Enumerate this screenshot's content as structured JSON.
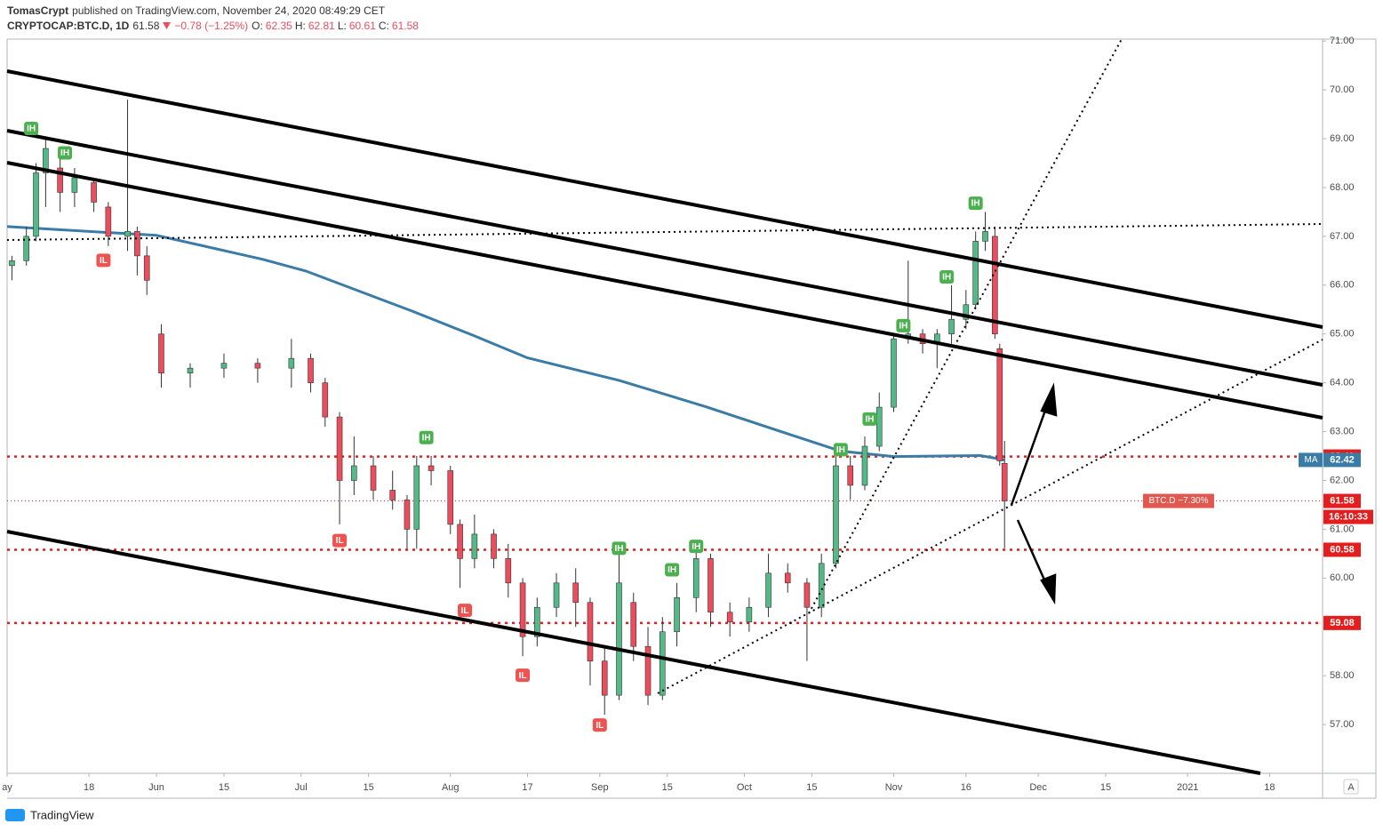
{
  "header": {
    "author": "TomasCrypt",
    "published": "published on TradingView.com, November 24, 2020 08:49:29 CET",
    "symbol": "CRYPTOCAP:BTC.D, 1D",
    "last": 61.58,
    "change": "−0.78 (−1.25%)",
    "ohlc_labels": [
      "O:",
      "H:",
      "L:",
      "C:"
    ]
  },
  "chart_data": {
    "type": "candlestick",
    "x": [
      "2020-05-02",
      "2020-05-05",
      "2020-05-07",
      "2020-05-09",
      "2020-05-12",
      "2020-05-15",
      "2020-05-19",
      "2020-05-22",
      "2020-05-26",
      "2020-05-28",
      "2020-05-30",
      "2020-06-02",
      "2020-06-08",
      "2020-06-15",
      "2020-06-22",
      "2020-06-29",
      "2020-07-03",
      "2020-07-06",
      "2020-07-09",
      "2020-07-12",
      "2020-07-16",
      "2020-07-20",
      "2020-07-23",
      "2020-07-25",
      "2020-07-28",
      "2020-08-01",
      "2020-08-03",
      "2020-08-06",
      "2020-08-10",
      "2020-08-13",
      "2020-08-16",
      "2020-08-19",
      "2020-08-23",
      "2020-08-27",
      "2020-08-30",
      "2020-09-02",
      "2020-09-05",
      "2020-09-08",
      "2020-09-11",
      "2020-09-14",
      "2020-09-17",
      "2020-09-21",
      "2020-09-24",
      "2020-09-28",
      "2020-10-02",
      "2020-10-06",
      "2020-10-10",
      "2020-10-14",
      "2020-10-17",
      "2020-10-20",
      "2020-10-23",
      "2020-10-26",
      "2020-10-29",
      "2020-11-01",
      "2020-11-04",
      "2020-11-07",
      "2020-11-10",
      "2020-11-13",
      "2020-11-16",
      "2020-11-18",
      "2020-11-20",
      "2020-11-22",
      "2020-11-23",
      "2020-11-24"
    ],
    "open": [
      66.4,
      66.5,
      67.0,
      68.3,
      68.4,
      67.9,
      68.1,
      67.6,
      67.0,
      67.1,
      66.6,
      65.0,
      64.2,
      64.3,
      64.4,
      64.3,
      64.5,
      64.0,
      63.3,
      62.0,
      62.3,
      61.8,
      61.6,
      61.0,
      62.3,
      62.2,
      61.1,
      60.4,
      60.9,
      60.4,
      59.9,
      58.8,
      59.4,
      59.9,
      59.5,
      58.3,
      57.6,
      59.5,
      58.6,
      57.6,
      58.9,
      59.6,
      60.4,
      59.3,
      59.1,
      59.4,
      60.1,
      59.9,
      59.4,
      60.3,
      62.3,
      61.9,
      62.7,
      63.5,
      64.9,
      65.0,
      64.8,
      65.0,
      65.3,
      65.6,
      66.9,
      67.0,
      64.7,
      62.35
    ],
    "high": [
      66.6,
      67.2,
      68.5,
      69.0,
      68.6,
      68.4,
      68.2,
      67.7,
      69.8,
      67.2,
      66.8,
      65.2,
      64.4,
      64.6,
      64.5,
      64.9,
      64.6,
      64.1,
      63.4,
      62.9,
      62.5,
      62.2,
      61.7,
      62.5,
      62.5,
      62.3,
      61.2,
      61.3,
      61.0,
      60.7,
      60.0,
      59.6,
      60.1,
      60.2,
      59.6,
      58.6,
      60.5,
      59.7,
      59.0,
      59.2,
      59.9,
      60.6,
      60.5,
      59.5,
      59.6,
      60.5,
      60.3,
      60.0,
      60.5,
      62.6,
      62.5,
      62.9,
      63.8,
      65.0,
      66.5,
      65.1,
      65.1,
      66.0,
      65.9,
      67.1,
      67.5,
      67.2,
      64.8,
      62.81
    ],
    "low": [
      66.1,
      66.4,
      66.9,
      67.6,
      67.5,
      67.6,
      67.5,
      66.8,
      66.7,
      66.2,
      65.8,
      63.9,
      63.9,
      64.1,
      64.0,
      63.9,
      63.8,
      63.1,
      61.1,
      61.7,
      61.6,
      61.4,
      60.6,
      60.6,
      61.9,
      60.9,
      59.8,
      60.2,
      60.2,
      59.6,
      58.4,
      58.6,
      59.2,
      59.0,
      57.8,
      57.2,
      57.5,
      58.3,
      57.4,
      57.5,
      58.6,
      59.3,
      59.0,
      58.8,
      58.9,
      59.2,
      59.7,
      58.3,
      59.2,
      60.2,
      61.6,
      61.8,
      62.6,
      63.4,
      64.8,
      64.6,
      64.3,
      64.8,
      65.1,
      65.5,
      66.7,
      64.9,
      62.3,
      60.61
    ],
    "close": [
      66.5,
      67.0,
      68.3,
      68.8,
      67.9,
      68.2,
      67.7,
      67.0,
      67.1,
      66.6,
      66.1,
      64.2,
      64.3,
      64.4,
      64.3,
      64.5,
      64.0,
      63.3,
      62.0,
      62.3,
      61.8,
      61.6,
      61.0,
      62.3,
      62.2,
      61.1,
      60.4,
      60.9,
      60.4,
      59.9,
      58.8,
      59.4,
      59.9,
      59.5,
      58.3,
      57.6,
      59.9,
      58.6,
      57.6,
      58.9,
      59.6,
      60.4,
      59.3,
      59.1,
      59.4,
      60.1,
      59.9,
      59.4,
      60.3,
      62.3,
      61.9,
      62.7,
      63.5,
      64.9,
      65.0,
      64.8,
      65.0,
      65.3,
      65.6,
      66.9,
      67.1,
      65.0,
      62.4,
      61.58
    ],
    "up_color": "#53b987",
    "down_color": "#eb4d5c",
    "ma": {
      "label": "MA",
      "value": 62.42,
      "color": "#3a7ca5",
      "x": [
        "2020-05-01",
        "2020-06-01",
        "2020-06-23",
        "2020-07-02",
        "2020-07-24",
        "2020-08-06",
        "2020-08-17",
        "2020-09-05",
        "2020-09-23",
        "2020-10-12",
        "2020-10-21",
        "2020-11-01",
        "2020-11-19",
        "2020-11-24"
      ],
      "values": [
        67.2,
        67.02,
        66.53,
        66.29,
        65.47,
        64.96,
        64.51,
        64.05,
        63.51,
        62.89,
        62.6,
        62.49,
        62.51,
        62.42
      ]
    },
    "levels": [
      62.49,
      60.58,
      59.08
    ],
    "level_color": "#e41e1e",
    "change_label": "BTC.D −7.30%",
    "countdown": "16:10:33",
    "annotations": [
      {
        "label": "IH",
        "x": "2020-05-06",
        "y": 69.2
      },
      {
        "label": "IH",
        "x": "2020-05-13",
        "y": 68.7
      },
      {
        "label": "IL",
        "x": "2020-05-21",
        "y": 66.5
      },
      {
        "label": "IL",
        "x": "2020-07-09",
        "y": 60.76
      },
      {
        "label": "IH",
        "x": "2020-07-27",
        "y": 62.87
      },
      {
        "label": "IL",
        "x": "2020-08-04",
        "y": 59.33
      },
      {
        "label": "IL",
        "x": "2020-08-16",
        "y": 58.0
      },
      {
        "label": "IL",
        "x": "2020-09-01",
        "y": 56.98
      },
      {
        "label": "IH",
        "x": "2020-09-05",
        "y": 60.6
      },
      {
        "label": "IH",
        "x": "2020-09-16",
        "y": 60.16
      },
      {
        "label": "IH",
        "x": "2020-09-21",
        "y": 60.64
      },
      {
        "label": "IH",
        "x": "2020-10-21",
        "y": 62.62
      },
      {
        "label": "IH",
        "x": "2020-10-27",
        "y": 63.25
      },
      {
        "label": "IH",
        "x": "2020-11-03",
        "y": 65.16
      },
      {
        "label": "IH",
        "x": "2020-11-12",
        "y": 66.16
      },
      {
        "label": "IH",
        "x": "2020-11-18",
        "y": 67.67
      }
    ],
    "xlim": [
      "2020-05-01",
      "2021-01-29"
    ],
    "xticks": [
      {
        "value": "2020-05-01",
        "label": "ay"
      },
      {
        "value": "2020-05-18",
        "label": "18"
      },
      {
        "value": "2020-06-01",
        "label": "Jun"
      },
      {
        "value": "2020-06-15",
        "label": "15"
      },
      {
        "value": "2020-07-01",
        "label": "Jul"
      },
      {
        "value": "2020-07-15",
        "label": "15"
      },
      {
        "value": "2020-08-01",
        "label": "Aug"
      },
      {
        "value": "2020-08-17",
        "label": "17"
      },
      {
        "value": "2020-09-01",
        "label": "Sep"
      },
      {
        "value": "2020-09-15",
        "label": "15"
      },
      {
        "value": "2020-10-01",
        "label": "Oct"
      },
      {
        "value": "2020-10-15",
        "label": "15"
      },
      {
        "value": "2020-11-01",
        "label": "Nov"
      },
      {
        "value": "2020-11-16",
        "label": "16"
      },
      {
        "value": "2020-12-01",
        "label": "Dec"
      },
      {
        "value": "2020-12-15",
        "label": "15"
      },
      {
        "value": "2021-01-01",
        "label": "2021"
      },
      {
        "value": "2021-01-18",
        "label": "18"
      }
    ],
    "ylim": [
      56.0,
      71.04
    ],
    "yticks": [
      {
        "value": 57,
        "label": "57.00"
      },
      {
        "value": 58,
        "label": "58.00"
      },
      {
        "value": 59,
        "label": "59.00"
      },
      {
        "value": 60,
        "label": "60.00"
      },
      {
        "value": 61,
        "label": "61.00"
      },
      {
        "value": 62,
        "label": "62.00"
      },
      {
        "value": 63,
        "label": "63.00"
      },
      {
        "value": 64,
        "label": "64.00"
      },
      {
        "value": 65,
        "label": "65.00"
      },
      {
        "value": 66,
        "label": "66.00"
      },
      {
        "value": 67,
        "label": "67.00"
      },
      {
        "value": 68,
        "label": "68.00"
      },
      {
        "value": 69,
        "label": "69.00"
      },
      {
        "value": 70,
        "label": "70.00"
      },
      {
        "value": 71,
        "label": "71.00"
      }
    ]
  },
  "footer": {
    "brand": "TradingView",
    "scale_button": "A"
  }
}
